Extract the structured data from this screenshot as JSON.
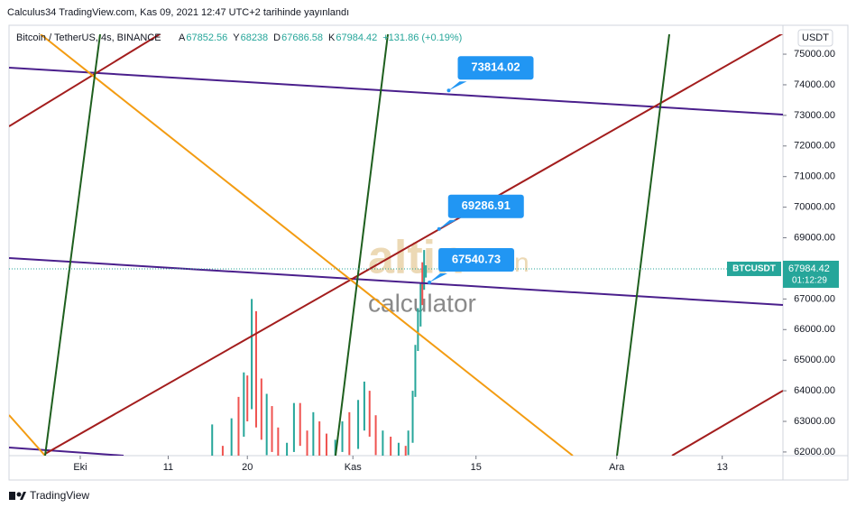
{
  "header": {
    "publisher": "Calculus34 TradingView.com, Kas 09, 2021 12:47 UTC+2 tarihinde yayınlandı",
    "symbol": "Bitcoin / TetherUS, 4s, BINANCE",
    "ohlc": [
      {
        "label": "A",
        "value": 67852.56
      },
      {
        "label": "Y",
        "value": 68238.0
      },
      {
        "label": "D",
        "value": 67686.58
      },
      {
        "label": "K",
        "value": 67984.42
      }
    ],
    "change": "+131.86 (+0.19%)",
    "currency_button": "USDT"
  },
  "chart_data": {
    "type": "candlestick",
    "grid": false,
    "x": [
      15.0,
      16.2,
      17.2,
      18.0,
      18.6,
      19.0,
      19.5,
      20.0,
      20.6,
      21.2,
      21.8,
      22.5,
      23.5,
      24.3,
      25.0,
      25.8,
      26.5,
      27.2,
      28.0,
      29.0,
      29.8,
      30.6,
      31.6,
      32.3,
      32.9,
      33.6,
      34.4,
      35.3,
      36.2,
      37.0,
      37.3,
      37.8,
      38.1,
      38.4,
      38.7,
      38.9,
      39.1,
      39.3
    ],
    "high": [
      62900,
      62200,
      63100,
      63800,
      64600,
      64500,
      67000,
      66600,
      64400,
      63900,
      63500,
      62800,
      62300,
      63600,
      63600,
      62700,
      63300,
      63000,
      62600,
      62400,
      63000,
      63300,
      63700,
      64300,
      64000,
      63200,
      62700,
      62500,
      62300,
      62200,
      62700,
      64000,
      65500,
      66700,
      67500,
      68200,
      68600,
      68100
    ],
    "low": [
      61600,
      61600,
      61600,
      61700,
      62500,
      63000,
      63400,
      62800,
      62400,
      61900,
      62000,
      61700,
      61600,
      62000,
      62200,
      61700,
      61800,
      61700,
      61600,
      61600,
      62000,
      61900,
      62100,
      62700,
      62500,
      61900,
      61700,
      61600,
      61600,
      61700,
      61900,
      62300,
      63800,
      65300,
      66100,
      66800,
      67300,
      67700
    ],
    "up": [
      true,
      false,
      true,
      false,
      true,
      false,
      true,
      false,
      false,
      true,
      false,
      false,
      true,
      true,
      false,
      false,
      true,
      false,
      false,
      true,
      true,
      false,
      true,
      true,
      false,
      false,
      true,
      false,
      true,
      false,
      true,
      true,
      true,
      true,
      true,
      false,
      true,
      true
    ],
    "up_color": "#26a69a",
    "down_color": "#ef5350",
    "xlim": [
      -8.1,
      79.9
    ],
    "xticks": [
      {
        "value": 0,
        "label": "Eki"
      },
      {
        "value": 10,
        "label": "11"
      },
      {
        "value": 19,
        "label": "20"
      },
      {
        "value": 31,
        "label": "Kas"
      },
      {
        "value": 45,
        "label": "15"
      },
      {
        "value": 61,
        "label": "Ara"
      },
      {
        "value": 73,
        "label": "13"
      }
    ],
    "ylim": [
      61880,
      75650
    ],
    "yticks": [
      {
        "value": 62000,
        "label": "62000.00"
      },
      {
        "value": 63000,
        "label": "63000.00"
      },
      {
        "value": 64000,
        "label": "64000.00"
      },
      {
        "value": 65000,
        "label": "65000.00"
      },
      {
        "value": 66000,
        "label": "66000.00"
      },
      {
        "value": 67000,
        "label": "67000.00"
      },
      {
        "value": 68000,
        "label": "68000.00"
      },
      {
        "value": 69000,
        "label": "69000.00"
      },
      {
        "value": 70000,
        "label": "70000.00"
      },
      {
        "value": 71000,
        "label": "71000.00"
      },
      {
        "value": 72000,
        "label": "72000.00"
      },
      {
        "value": 73000,
        "label": "73000.00"
      },
      {
        "value": 74000,
        "label": "74000.00"
      },
      {
        "value": 75000,
        "label": "75000.00"
      }
    ],
    "last_price": {
      "symbol": "BTCUSDT",
      "value": 67984.42,
      "label": "67984.42",
      "countdown": "01:12:29",
      "color": "#26a69a"
    },
    "annotations": [
      {
        "x": 41.9,
        "value": 73814.02,
        "label": "73814.02"
      },
      {
        "x": 40.8,
        "value": 69286.91,
        "label": "69286.91"
      },
      {
        "x": 39.7,
        "value": 67540.73,
        "label": "67540.73"
      }
    ],
    "annotation_color": "#2196f3"
  },
  "watermark": {
    "brand": "altin",
    ".in": ".in",
    "tool": "calculator"
  },
  "footer": {
    "brand": "TradingView"
  }
}
